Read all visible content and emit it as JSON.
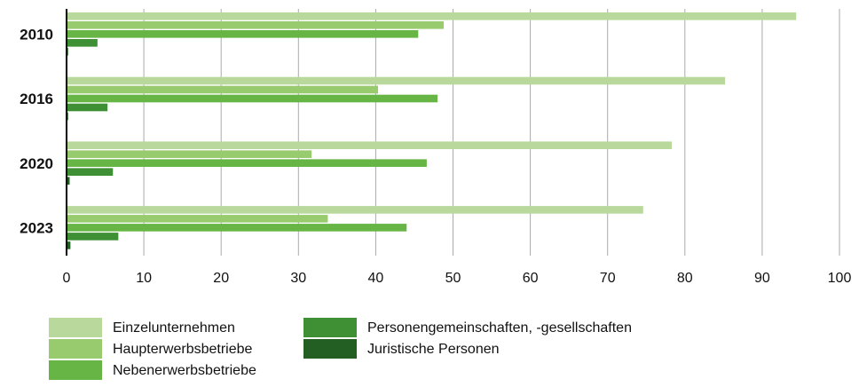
{
  "chart_data": {
    "type": "bar",
    "orientation": "horizontal",
    "categories": [
      "2010",
      "2016",
      "2020",
      "2023"
    ],
    "series": [
      {
        "name": "Einzelunternehmen",
        "color": "#b9d99c",
        "values": [
          94.4,
          85.2,
          78.3,
          74.6
        ]
      },
      {
        "name": "Haupterwerbsbetriebe",
        "color": "#98cb6e",
        "values": [
          48.8,
          40.3,
          31.7,
          33.8
        ]
      },
      {
        "name": "Nebenerwerbsbetriebe",
        "color": "#66b545",
        "values": [
          45.5,
          48.0,
          46.6,
          44.0
        ]
      },
      {
        "name": "Personengemeinschaften, -gesellschaften",
        "color": "#3f8f35",
        "values": [
          4.0,
          5.3,
          6.0,
          6.7
        ]
      },
      {
        "name": "Juristische Personen",
        "color": "#235f22",
        "values": [
          0.2,
          0.2,
          0.4,
          0.5
        ]
      }
    ],
    "xlim": [
      0,
      100
    ],
    "xticks": [
      0,
      10,
      20,
      30,
      40,
      50,
      60,
      70,
      80,
      90,
      100
    ],
    "grid": true
  }
}
